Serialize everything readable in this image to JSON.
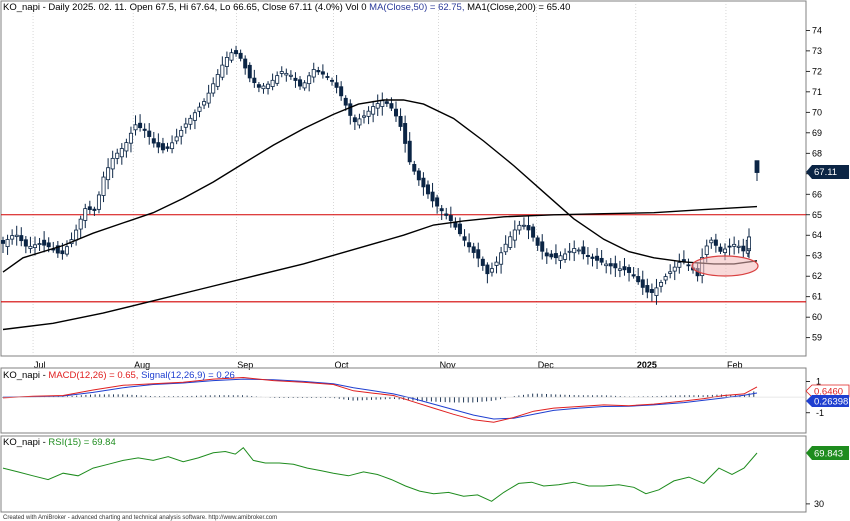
{
  "price_header": {
    "prefix": "KO_napi - Daily 2025. 02. 11. Open 67.5, Hi 67.64, Lo 66.65, Close 67.11 (4.0%) Vol 0 ",
    "ma50": "MA(Close,50) = 62.75, ",
    "ma200": "MA1(Close,200) = 65.40"
  },
  "macd_header": {
    "prefix": "KO_napi - ",
    "macd": "MACD(12,26) = 0.65, ",
    "signal": "Signal(12,26,9) = 0.26"
  },
  "rsi_header": {
    "prefix": "KO_napi - ",
    "rsi": "RSI(15) = 69.84"
  },
  "price_tag": "67.11",
  "macd_tag": "0.6460",
  "signal_tag": "0.26398",
  "rsi_tag": "69.843",
  "footer": "Created with AmiBroker - advanced charting and technical analysis software. http://www.amibroker.com",
  "colors": {
    "candle": "#0b2545",
    "ma50": "#000000",
    "ma200": "#000000",
    "hline": "#d40000",
    "macd": "#e02020",
    "signal": "#1f3fd0",
    "rsi": "#1e8c1e",
    "ellipse": "#e05a5a"
  },
  "chart_data": [
    {
      "type": "candlestick",
      "title": "KO_napi - Daily 2025. 02. 11.",
      "ylim": [
        58.3,
        74.8
      ],
      "y_ticks": [
        59,
        60,
        61,
        62,
        63,
        64,
        65,
        66,
        67,
        68,
        69,
        70,
        71,
        72,
        73,
        74
      ],
      "x_ticks": [
        "Jul",
        "Aug",
        "Sep",
        "Oct",
        "Nov",
        "Dec",
        "2025",
        "Feb"
      ],
      "close_path": [
        [
          0,
          63.6
        ],
        [
          12,
          64.1
        ],
        [
          24,
          63.4
        ],
        [
          36,
          63.6
        ],
        [
          48,
          63.4
        ],
        [
          58,
          63.0
        ],
        [
          70,
          63.9
        ],
        [
          82,
          65.3
        ],
        [
          92,
          65.2
        ],
        [
          100,
          66.8
        ],
        [
          110,
          67.8
        ],
        [
          122,
          68.4
        ],
        [
          132,
          69.4
        ],
        [
          142,
          69.1
        ],
        [
          152,
          68.4
        ],
        [
          162,
          68.1
        ],
        [
          172,
          68.7
        ],
        [
          182,
          69.4
        ],
        [
          192,
          70.0
        ],
        [
          202,
          70.6
        ],
        [
          212,
          71.6
        ],
        [
          222,
          72.6
        ],
        [
          230,
          73.0
        ],
        [
          238,
          72.6
        ],
        [
          246,
          71.7
        ],
        [
          256,
          71.2
        ],
        [
          266,
          71.4
        ],
        [
          278,
          72.0
        ],
        [
          288,
          71.8
        ],
        [
          298,
          71.2
        ],
        [
          310,
          72.1
        ],
        [
          322,
          71.8
        ],
        [
          330,
          71.5
        ],
        [
          340,
          70.6
        ],
        [
          350,
          69.5
        ],
        [
          360,
          69.8
        ],
        [
          370,
          70.3
        ],
        [
          380,
          70.6
        ],
        [
          390,
          70.1
        ],
        [
          398,
          69.2
        ],
        [
          406,
          67.6
        ],
        [
          414,
          66.8
        ],
        [
          422,
          66.2
        ],
        [
          430,
          65.6
        ],
        [
          438,
          65.2
        ],
        [
          446,
          64.8
        ],
        [
          456,
          64.1
        ],
        [
          466,
          63.4
        ],
        [
          476,
          62.8
        ],
        [
          484,
          62.1
        ],
        [
          492,
          62.6
        ],
        [
          500,
          63.4
        ],
        [
          510,
          64.2
        ],
        [
          518,
          64.6
        ],
        [
          526,
          64.2
        ],
        [
          534,
          63.5
        ],
        [
          542,
          63.0
        ],
        [
          552,
          62.9
        ],
        [
          562,
          63.1
        ],
        [
          572,
          63.4
        ],
        [
          582,
          63.0
        ],
        [
          592,
          62.8
        ],
        [
          602,
          62.6
        ],
        [
          612,
          62.4
        ],
        [
          622,
          62.3
        ],
        [
          630,
          62.0
        ],
        [
          638,
          61.5
        ],
        [
          646,
          61.1
        ],
        [
          654,
          61.5
        ],
        [
          662,
          62.0
        ],
        [
          670,
          62.4
        ],
        [
          678,
          62.8
        ],
        [
          686,
          62.5
        ],
        [
          694,
          62.0
        ],
        [
          700,
          63.3
        ],
        [
          708,
          63.8
        ],
        [
          716,
          63.2
        ],
        [
          724,
          63.4
        ],
        [
          732,
          63.6
        ],
        [
          740,
          63.2
        ],
        [
          747,
          64.2
        ],
        [
          753,
          67.1
        ]
      ],
      "ma50_path": [
        [
          0,
          62.2
        ],
        [
          20,
          62.9
        ],
        [
          60,
          63.5
        ],
        [
          90,
          64.1
        ],
        [
          120,
          64.6
        ],
        [
          150,
          65.1
        ],
        [
          180,
          65.8
        ],
        [
          210,
          66.6
        ],
        [
          240,
          67.5
        ],
        [
          270,
          68.4
        ],
        [
          300,
          69.2
        ],
        [
          330,
          69.9
        ],
        [
          355,
          70.4
        ],
        [
          380,
          70.6
        ],
        [
          400,
          70.6
        ],
        [
          420,
          70.4
        ],
        [
          450,
          69.7
        ],
        [
          480,
          68.6
        ],
        [
          510,
          67.4
        ],
        [
          540,
          66.1
        ],
        [
          570,
          64.8
        ],
        [
          600,
          63.8
        ],
        [
          625,
          63.2
        ],
        [
          650,
          62.9
        ],
        [
          680,
          62.7
        ],
        [
          710,
          62.6
        ],
        [
          730,
          62.6
        ],
        [
          753,
          62.75
        ]
      ],
      "ma200_path": [
        [
          0,
          59.4
        ],
        [
          50,
          59.7
        ],
        [
          100,
          60.2
        ],
        [
          150,
          60.8
        ],
        [
          200,
          61.4
        ],
        [
          250,
          62.0
        ],
        [
          300,
          62.6
        ],
        [
          350,
          63.3
        ],
        [
          400,
          64.0
        ],
        [
          430,
          64.5
        ],
        [
          460,
          64.7
        ],
        [
          500,
          64.9
        ],
        [
          550,
          65.0
        ],
        [
          600,
          65.05
        ],
        [
          650,
          65.1
        ],
        [
          700,
          65.25
        ],
        [
          753,
          65.4
        ]
      ],
      "horizontal_lines": [
        65.0,
        60.75
      ],
      "last_price": 67.11
    },
    {
      "type": "line",
      "title": "MACD(12,26) = 0.65, Signal(12,26,9) = 0.26",
      "ylim": [
        -2.1,
        1.6
      ],
      "y_ticks": [
        1,
        -1
      ],
      "series": [
        {
          "name": "MACD(12,26)",
          "values": [
            [
              0,
              -0.05
            ],
            [
              30,
              0.05
            ],
            [
              60,
              0.1
            ],
            [
              90,
              0.45
            ],
            [
              120,
              0.75
            ],
            [
              150,
              0.85
            ],
            [
              180,
              0.95
            ],
            [
              210,
              1.15
            ],
            [
              240,
              1.25
            ],
            [
              270,
              1.05
            ],
            [
              300,
              0.95
            ],
            [
              330,
              0.8
            ],
            [
              350,
              0.4
            ],
            [
              370,
              0.25
            ],
            [
              390,
              0.1
            ],
            [
              410,
              -0.3
            ],
            [
              430,
              -0.7
            ],
            [
              450,
              -1.1
            ],
            [
              470,
              -1.45
            ],
            [
              490,
              -1.6
            ],
            [
              510,
              -1.3
            ],
            [
              530,
              -0.9
            ],
            [
              550,
              -0.7
            ],
            [
              575,
              -0.6
            ],
            [
              600,
              -0.5
            ],
            [
              625,
              -0.55
            ],
            [
              650,
              -0.45
            ],
            [
              680,
              -0.25
            ],
            [
              700,
              -0.1
            ],
            [
              720,
              0.1
            ],
            [
              740,
              0.2
            ],
            [
              753,
              0.65
            ]
          ]
        },
        {
          "name": "Signal(12,26,9)",
          "values": [
            [
              0,
              0.0
            ],
            [
              30,
              0.02
            ],
            [
              60,
              0.07
            ],
            [
              90,
              0.3
            ],
            [
              120,
              0.6
            ],
            [
              150,
              0.8
            ],
            [
              180,
              0.9
            ],
            [
              210,
              1.05
            ],
            [
              240,
              1.15
            ],
            [
              270,
              1.1
            ],
            [
              300,
              1.0
            ],
            [
              330,
              0.85
            ],
            [
              350,
              0.6
            ],
            [
              370,
              0.4
            ],
            [
              390,
              0.2
            ],
            [
              410,
              -0.1
            ],
            [
              430,
              -0.45
            ],
            [
              450,
              -0.8
            ],
            [
              470,
              -1.15
            ],
            [
              490,
              -1.4
            ],
            [
              510,
              -1.35
            ],
            [
              530,
              -1.1
            ],
            [
              550,
              -0.85
            ],
            [
              575,
              -0.7
            ],
            [
              600,
              -0.6
            ],
            [
              625,
              -0.58
            ],
            [
              650,
              -0.5
            ],
            [
              680,
              -0.35
            ],
            [
              700,
              -0.2
            ],
            [
              720,
              -0.05
            ],
            [
              740,
              0.12
            ],
            [
              753,
              0.26
            ]
          ]
        }
      ]
    },
    {
      "type": "line",
      "title": "RSI(15) = 69.84",
      "ylim": [
        26,
        80
      ],
      "y_ticks": [
        30
      ],
      "series": [
        {
          "name": "RSI(15)",
          "values": [
            [
              0,
              58
            ],
            [
              15,
              55
            ],
            [
              30,
              52
            ],
            [
              45,
              49
            ],
            [
              60,
              54
            ],
            [
              75,
              52
            ],
            [
              90,
              58
            ],
            [
              105,
              61
            ],
            [
              120,
              64
            ],
            [
              135,
              66
            ],
            [
              150,
              64
            ],
            [
              165,
              67
            ],
            [
              180,
              63
            ],
            [
              195,
              66
            ],
            [
              210,
              70
            ],
            [
              222,
              71
            ],
            [
              232,
              69
            ],
            [
              240,
              74
            ],
            [
              250,
              64
            ],
            [
              262,
              62
            ],
            [
              276,
              62
            ],
            [
              290,
              61
            ],
            [
              304,
              58
            ],
            [
              318,
              56
            ],
            [
              330,
              54
            ],
            [
              345,
              52
            ],
            [
              360,
              55
            ],
            [
              374,
              53
            ],
            [
              388,
              49
            ],
            [
              402,
              44
            ],
            [
              416,
              40
            ],
            [
              430,
              38
            ],
            [
              445,
              39
            ],
            [
              460,
              36
            ],
            [
              474,
              37
            ],
            [
              488,
              32
            ],
            [
              500,
              39
            ],
            [
              515,
              46
            ],
            [
              528,
              47
            ],
            [
              540,
              44
            ],
            [
              555,
              45
            ],
            [
              570,
              47
            ],
            [
              585,
              44
            ],
            [
              600,
              44
            ],
            [
              615,
              45
            ],
            [
              630,
              43
            ],
            [
              642,
              38
            ],
            [
              655,
              41
            ],
            [
              670,
              48
            ],
            [
              685,
              51
            ],
            [
              700,
              46
            ],
            [
              715,
              58
            ],
            [
              728,
              53
            ],
            [
              740,
              58
            ],
            [
              753,
              69.84
            ]
          ]
        }
      ]
    }
  ]
}
